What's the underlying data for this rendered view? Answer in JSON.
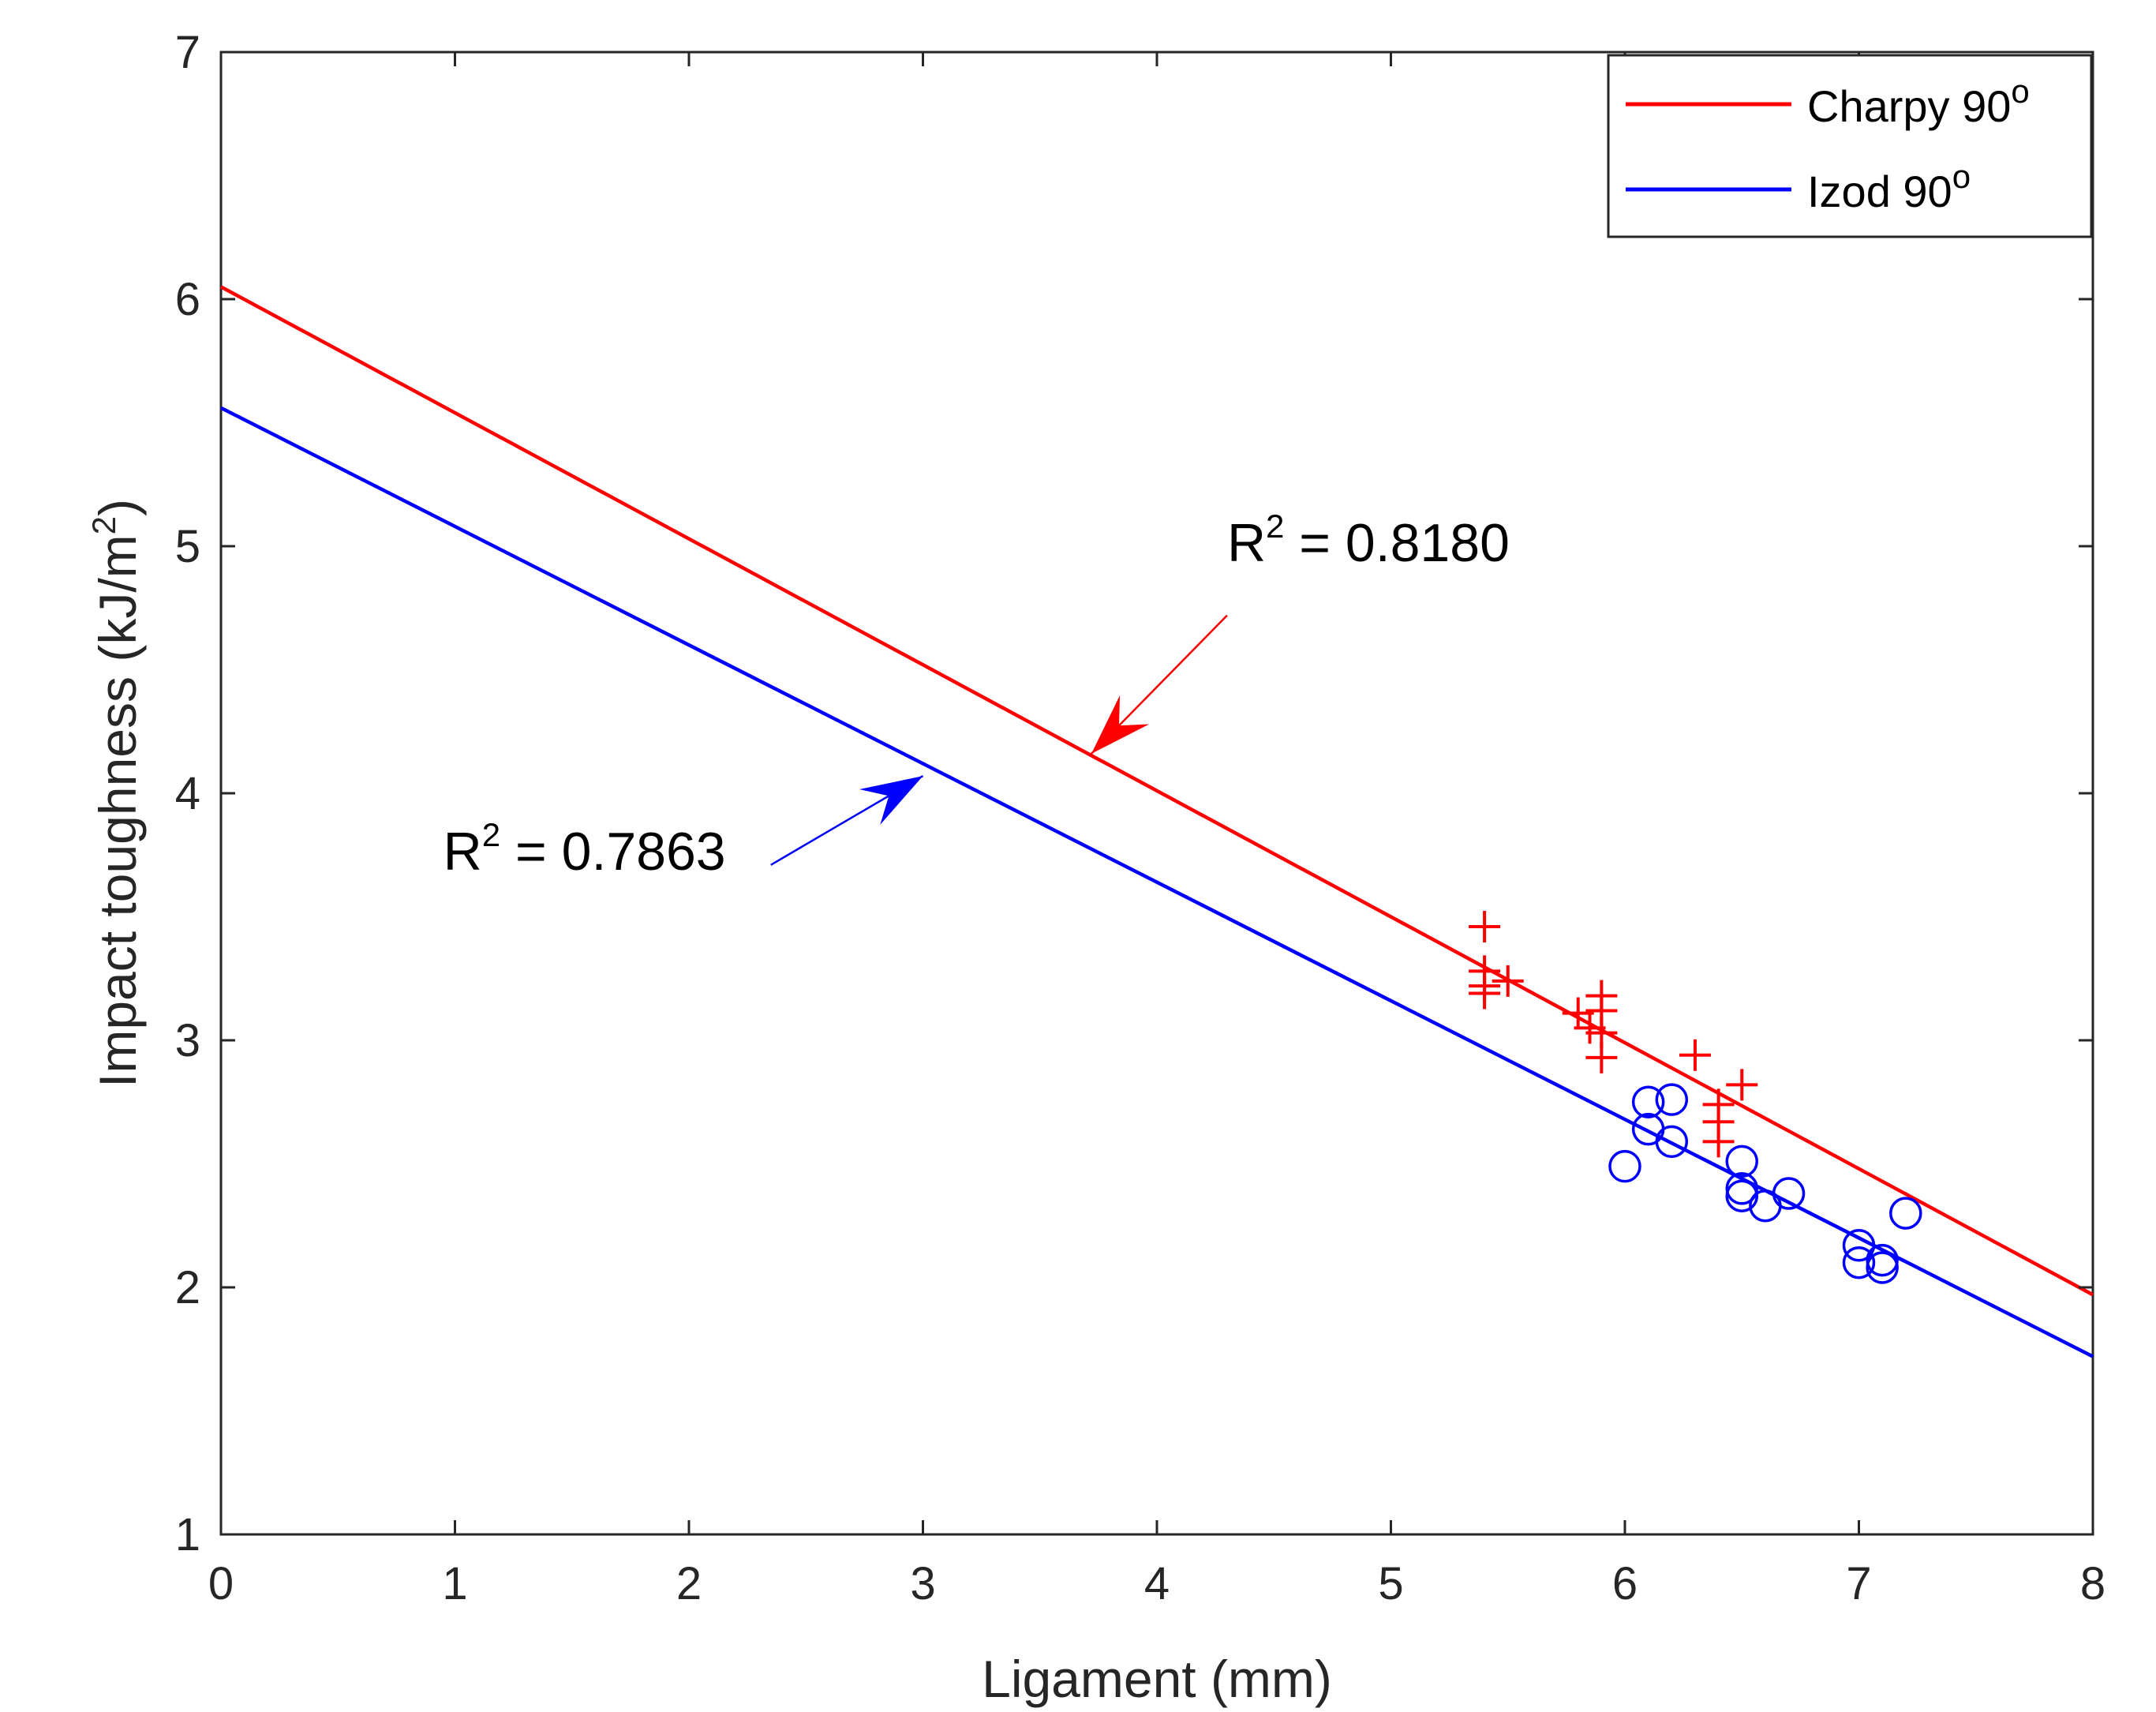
{
  "chart_data": {
    "type": "scatter",
    "title": "",
    "xlabel": "Ligament (mm)",
    "ylabel": "Impact toughness (kJ/m²)",
    "ylabel_parts": {
      "main": "Impact toughness (kJ/m",
      "sup": "2",
      "end": ")"
    },
    "xlim": [
      0,
      8
    ],
    "ylim": [
      1,
      7
    ],
    "xticks": [
      0,
      1,
      2,
      3,
      4,
      5,
      6,
      7,
      8
    ],
    "yticks": [
      1,
      2,
      3,
      4,
      5,
      6,
      7
    ],
    "grid": false,
    "legend_position": "top-right",
    "series": [
      {
        "name": "Charpy 90o",
        "label_main": "Charpy 90",
        "label_sup": "o",
        "color": "#ff0000",
        "marker": "plus",
        "fit": {
          "intercept": 6.05,
          "slope": -0.51,
          "r2_label": "R",
          "r2_sup": "2",
          "r2_value": " = 0.8180"
        },
        "points": [
          [
            5.4,
            3.46
          ],
          [
            5.4,
            3.28
          ],
          [
            5.4,
            3.22
          ],
          [
            5.4,
            3.19
          ],
          [
            5.5,
            3.24
          ],
          [
            5.8,
            3.11
          ],
          [
            5.85,
            3.05
          ],
          [
            5.9,
            3.18
          ],
          [
            5.9,
            3.12
          ],
          [
            5.9,
            3.03
          ],
          [
            5.9,
            2.93
          ],
          [
            6.3,
            2.94
          ],
          [
            6.4,
            2.74
          ],
          [
            6.4,
            2.67
          ],
          [
            6.4,
            2.59
          ],
          [
            6.5,
            2.82
          ]
        ]
      },
      {
        "name": "Izod 90o",
        "label_main": "Izod 90",
        "label_sup": "o",
        "color": "#0000ff",
        "marker": "circle",
        "fit": {
          "intercept": 5.56,
          "slope": -0.48,
          "r2_label": "R",
          "r2_sup": "2",
          "r2_value": " = 0.7863"
        },
        "points": [
          [
            6.0,
            2.49
          ],
          [
            6.1,
            2.75
          ],
          [
            6.1,
            2.64
          ],
          [
            6.2,
            2.76
          ],
          [
            6.2,
            2.59
          ],
          [
            6.5,
            2.51
          ],
          [
            6.5,
            2.4
          ],
          [
            6.5,
            2.37
          ],
          [
            6.6,
            2.33
          ],
          [
            6.7,
            2.38
          ],
          [
            7.0,
            2.17
          ],
          [
            7.0,
            2.1
          ],
          [
            7.1,
            2.11
          ],
          [
            7.1,
            2.08
          ],
          [
            7.2,
            2.3
          ]
        ]
      }
    ],
    "annotations": [
      {
        "series": 0,
        "text_x": 4.3,
        "text_y": 4.94,
        "arrow_from": [
          4.3,
          4.72
        ],
        "arrow_to": [
          3.72,
          4.16
        ]
      },
      {
        "series": 1,
        "text_x": 0.95,
        "text_y": 3.69,
        "arrow_from": [
          2.35,
          3.71
        ],
        "arrow_to": [
          3.0,
          4.07
        ]
      }
    ]
  }
}
